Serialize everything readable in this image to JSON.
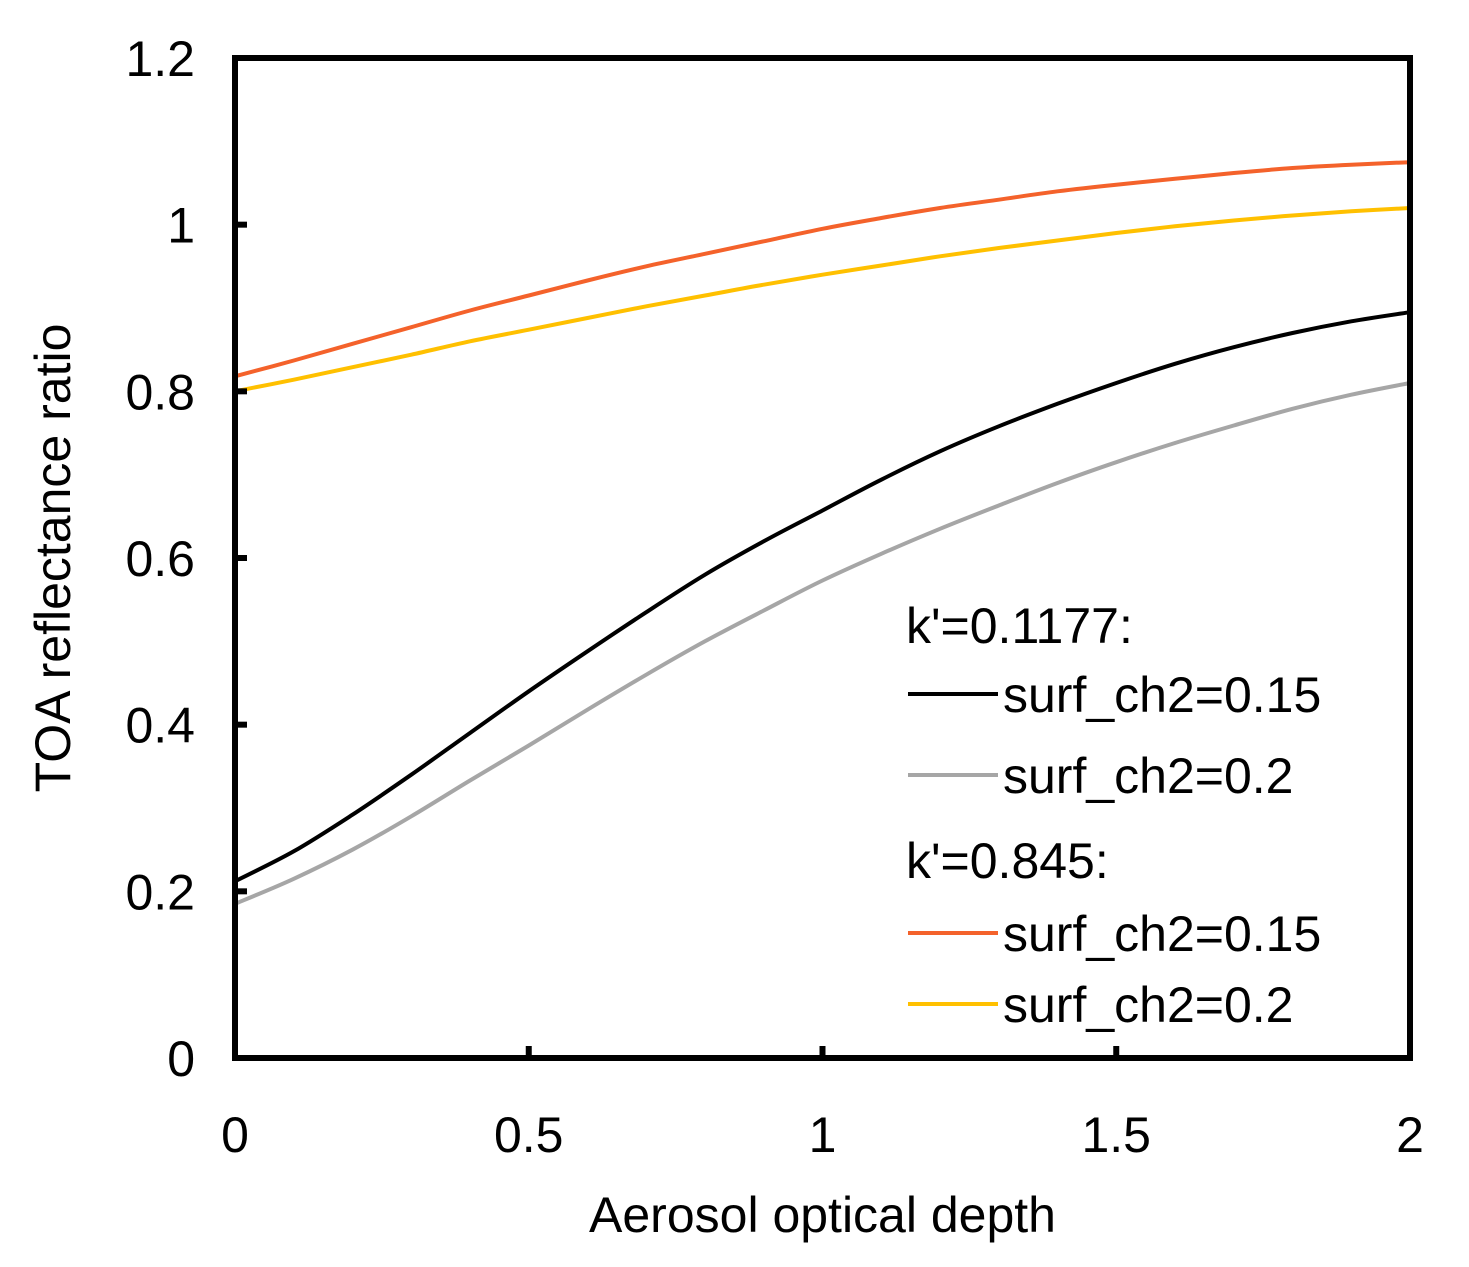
{
  "chart_data": {
    "type": "line",
    "title": "",
    "xlabel": "Aerosol optical depth",
    "ylabel": "TOA reflectance ratio",
    "xlim": [
      0,
      2
    ],
    "ylim": [
      0,
      1.2
    ],
    "x_ticks": [
      "0",
      "0.5",
      "1",
      "1.5",
      "2"
    ],
    "y_ticks": [
      "0",
      "0.2",
      "0.4",
      "0.6",
      "0.8",
      "1",
      "1.2"
    ],
    "grid": false,
    "legend_position": "bottom-right",
    "legend_groups": [
      "k'=0.1177:",
      "k'=0.845:"
    ],
    "x": [
      0,
      0.1,
      0.2,
      0.3,
      0.4,
      0.5,
      0.6,
      0.7,
      0.8,
      0.9,
      1.0,
      1.1,
      1.2,
      1.3,
      1.4,
      1.5,
      1.6,
      1.7,
      1.8,
      1.9,
      2.0
    ],
    "series": [
      {
        "name": "surf_ch2=0.15",
        "group": "k'=0.1177:",
        "color": "#000000",
        "values": [
          0.212,
          0.248,
          0.292,
          0.34,
          0.39,
          0.44,
          0.488,
          0.535,
          0.58,
          0.62,
          0.657,
          0.694,
          0.728,
          0.758,
          0.785,
          0.81,
          0.833,
          0.853,
          0.87,
          0.884,
          0.895
        ]
      },
      {
        "name": "surf_ch2=0.2",
        "group": "k'=0.1177:",
        "color": "#a6a6a6",
        "values": [
          0.185,
          0.215,
          0.25,
          0.29,
          0.333,
          0.375,
          0.418,
          0.46,
          0.5,
          0.537,
          0.573,
          0.605,
          0.635,
          0.663,
          0.69,
          0.715,
          0.738,
          0.759,
          0.779,
          0.796,
          0.81
        ]
      },
      {
        "name": "surf_ch2=0.15",
        "group": "k'=0.845:",
        "color": "#f4622b",
        "values": [
          0.818,
          0.837,
          0.857,
          0.877,
          0.897,
          0.915,
          0.933,
          0.95,
          0.965,
          0.98,
          0.995,
          1.008,
          1.02,
          1.03,
          1.04,
          1.048,
          1.055,
          1.062,
          1.068,
          1.072,
          1.075
        ]
      },
      {
        "name": "surf_ch2=0.2",
        "group": "k'=0.845:",
        "color": "#ffc000",
        "values": [
          0.8,
          0.814,
          0.829,
          0.844,
          0.86,
          0.874,
          0.888,
          0.902,
          0.915,
          0.928,
          0.94,
          0.951,
          0.962,
          0.972,
          0.981,
          0.99,
          0.998,
          1.005,
          1.011,
          1.016,
          1.02
        ]
      }
    ]
  }
}
